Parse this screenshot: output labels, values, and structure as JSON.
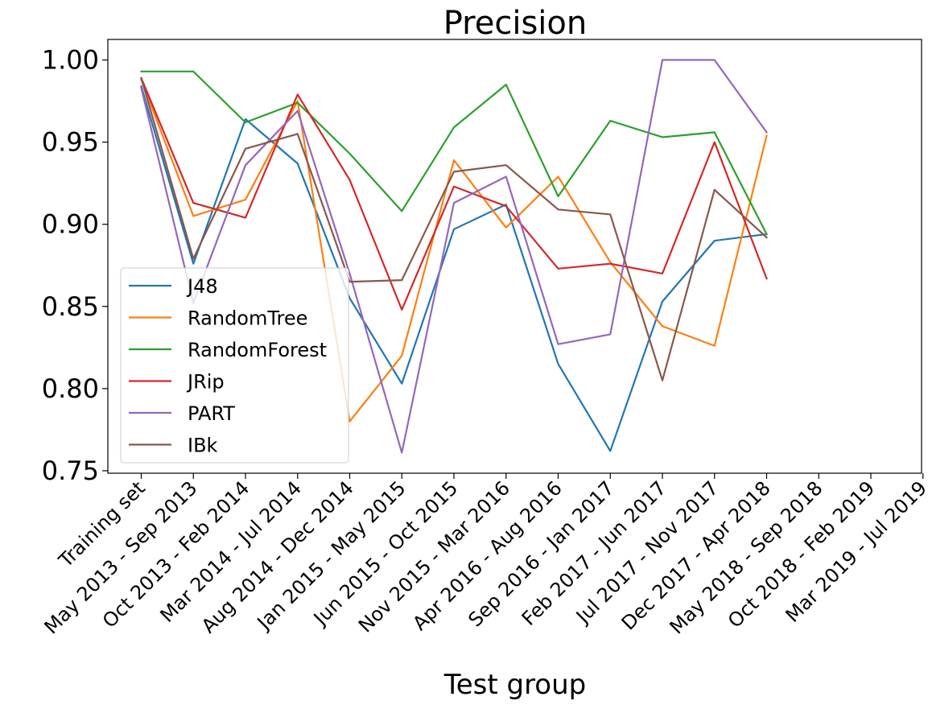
{
  "chart_data": {
    "type": "line",
    "title": "Precision",
    "xlabel": "Test group",
    "ylabel": "",
    "categories": [
      "Training set",
      "May 2013 - Sep 2013",
      "Oct 2013 - Feb 2014",
      "Mar 2014 - Jul 2014",
      "Aug 2014 - Dec 2014",
      "Jan 2015 - May 2015",
      "Jun 2015 - Oct 2015",
      "Nov 2015 - Mar 2016",
      "Apr 2016 - Aug 2016",
      "Sep 2016 - Jan 2017",
      "Feb 2017 - Jun 2017",
      "Jul 2017 - Nov 2017",
      "Dec 2017 - Apr 2018",
      "May 2018 - Sep 2018",
      "Oct 2018 - Feb 2019",
      "Mar 2019 - Jul 2019"
    ],
    "ylim": [
      0.7485,
      1.0125
    ],
    "yticks": [
      "0.75",
      "0.80",
      "0.85",
      "0.90",
      "0.95",
      "1.00"
    ],
    "yticks_values": [
      0.75,
      0.8,
      0.85,
      0.9,
      0.95,
      1.0
    ],
    "grid": false,
    "legend_position": "lower-left",
    "series": [
      {
        "name": "J48",
        "color": "#1f77b4",
        "values": [
          0.984,
          0.876,
          0.964,
          0.937,
          0.855,
          0.803,
          0.897,
          0.912,
          0.815,
          0.762,
          0.853,
          0.89,
          0.894,
          null,
          null,
          null
        ]
      },
      {
        "name": "RandomTree",
        "color": "#ff7f0e",
        "values": [
          0.988,
          0.905,
          0.915,
          0.975,
          0.78,
          0.82,
          0.939,
          0.898,
          0.929,
          0.877,
          0.838,
          0.826,
          0.954,
          null,
          null,
          null
        ]
      },
      {
        "name": "RandomForest",
        "color": "#2ca02c",
        "values": [
          0.993,
          0.993,
          0.962,
          0.974,
          0.943,
          0.908,
          0.959,
          0.985,
          0.917,
          0.963,
          0.953,
          0.956,
          0.894,
          null,
          null,
          null
        ]
      },
      {
        "name": "JRip",
        "color": "#d62728",
        "values": [
          0.989,
          0.913,
          0.904,
          0.979,
          0.927,
          0.848,
          0.923,
          0.911,
          0.873,
          0.876,
          0.87,
          0.95,
          0.867,
          null,
          null,
          null
        ]
      },
      {
        "name": "PART",
        "color": "#9467bd",
        "values": [
          0.983,
          0.852,
          0.936,
          0.969,
          0.87,
          0.761,
          0.913,
          0.929,
          0.827,
          0.833,
          1.0,
          1.0,
          0.956,
          null,
          null,
          null
        ]
      },
      {
        "name": "IBk",
        "color": "#8c564b",
        "values": [
          0.989,
          0.879,
          0.946,
          0.955,
          0.865,
          0.866,
          0.932,
          0.936,
          0.909,
          0.906,
          0.805,
          0.921,
          0.892,
          null,
          null,
          null
        ]
      }
    ]
  }
}
